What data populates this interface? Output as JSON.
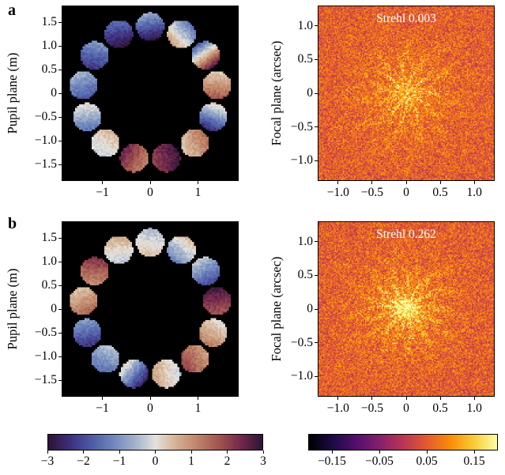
{
  "panels": [
    {
      "label": "a",
      "pupil": {
        "ylabel": "Pupil plane (m)"
      },
      "focal": {
        "ylabel": "Focal plane (arcsec)",
        "annotation": "Strehl 0.003"
      }
    },
    {
      "label": "b",
      "pupil": {
        "ylabel": "Pupil plane (m)"
      },
      "focal": {
        "ylabel": "Focal plane (arcsec)",
        "annotation": "Strehl 0.262"
      }
    }
  ],
  "chart_data": [
    {
      "id": "pupil-a",
      "type": "heatmap",
      "panel": "a",
      "title": "Segmented pupil wavefront phase, panel a",
      "xlabel": "",
      "ylabel": "Pupil plane (m)",
      "xlim": [
        -1.85,
        1.85
      ],
      "ylim": [
        -1.85,
        1.85
      ],
      "xtick_vals": [
        -1,
        0,
        1
      ],
      "xtick_labels": [
        "−1",
        "0",
        "1"
      ],
      "ytick_vals": [
        1.5,
        1.0,
        0.5,
        0,
        -0.5,
        -1.0,
        -1.5
      ],
      "ytick_labels": [
        "1.5",
        "1.0",
        "0.5",
        "0",
        "−0.5",
        "−1.0",
        "−1.5"
      ],
      "colormap": "twilight_shifted",
      "value_range": [
        -3,
        3
      ],
      "background": "black",
      "ring_radius_m": 1.42,
      "segment_radius_m": 0.3,
      "segments": [
        {
          "angle_deg": 90,
          "v1": -3.0,
          "v2": -0.6,
          "grad_deg": 100
        },
        {
          "angle_deg": 62.3,
          "v1": 0.9,
          "v2": -1.6,
          "grad_deg": 40
        },
        {
          "angle_deg": 34.6,
          "v1": 2.8,
          "v2": -1.9,
          "grad_deg": 125
        },
        {
          "angle_deg": 6.9,
          "v1": 1.8,
          "v2": 0.2,
          "grad_deg": 90
        },
        {
          "angle_deg": -20.8,
          "v1": -2.6,
          "v2": 0.4,
          "grad_deg": 70
        },
        {
          "angle_deg": -48.5,
          "v1": 0.3,
          "v2": 1.5,
          "grad_deg": 25
        },
        {
          "angle_deg": -76.2,
          "v1": 2.1,
          "v2": 2.9,
          "grad_deg": 10
        },
        {
          "angle_deg": -103.8,
          "v1": 1.1,
          "v2": 2.6,
          "grad_deg": 150
        },
        {
          "angle_deg": -131.5,
          "v1": -0.3,
          "v2": 0.6,
          "grad_deg": 60
        },
        {
          "angle_deg": -159.2,
          "v1": -1.5,
          "v2": 0.2,
          "grad_deg": 95
        },
        {
          "angle_deg": 173.1,
          "v1": -1.9,
          "v2": -0.5,
          "grad_deg": 110
        },
        {
          "angle_deg": 145.4,
          "v1": -2.4,
          "v2": -0.9,
          "grad_deg": 80
        },
        {
          "angle_deg": 117.7,
          "v1": -3.0,
          "v2": -1.5,
          "grad_deg": 100
        }
      ]
    },
    {
      "id": "focal-a",
      "type": "heatmap",
      "panel": "a",
      "title": "Focal plane PSF, panel a",
      "xlabel": "",
      "ylabel": "Focal plane (arcsec)",
      "annotation": "Strehl 0.003",
      "strehl": 0.003,
      "xlim": [
        -1.3,
        1.3
      ],
      "ylim": [
        -1.3,
        1.3
      ],
      "xtick_vals": [
        -1,
        -0.5,
        0,
        0.5,
        1
      ],
      "xtick_labels": [
        "−1.0",
        "−0.5",
        "0",
        "0.5",
        "1.0"
      ],
      "ytick_vals": [
        1.0,
        0.5,
        0,
        -0.5,
        -1.0
      ],
      "ytick_labels": [
        "1.0",
        "0.5",
        "0",
        "−0.5",
        "−1.0"
      ],
      "colormap": "inferno",
      "value_range": [
        -0.2,
        0.2
      ],
      "psf": {
        "seed": 11,
        "halo_amp": 0.1,
        "halo_sigma": 0.55,
        "core_amp": 0.035,
        "streak_count": 11
      }
    },
    {
      "id": "pupil-b",
      "type": "heatmap",
      "panel": "b",
      "title": "Segmented pupil wavefront phase, panel b",
      "xlabel": "",
      "ylabel": "Pupil plane (m)",
      "xlim": [
        -1.85,
        1.85
      ],
      "ylim": [
        -1.85,
        1.85
      ],
      "xtick_vals": [
        -1,
        0,
        1
      ],
      "xtick_labels": [
        "−1",
        "0",
        "1"
      ],
      "ytick_vals": [
        1.5,
        1.0,
        0.5,
        0,
        -0.5,
        -1.0,
        -1.5
      ],
      "ytick_labels": [
        "1.5",
        "1.0",
        "0.5",
        "0",
        "−0.5",
        "−1.0",
        "−1.5"
      ],
      "colormap": "twilight_shifted",
      "value_range": [
        -3,
        3
      ],
      "background": "black",
      "ring_radius_m": 1.42,
      "segment_radius_m": 0.3,
      "segments": [
        {
          "angle_deg": 90,
          "v1": 0.4,
          "v2": -0.5,
          "grad_deg": 80
        },
        {
          "angle_deg": 62.3,
          "v1": -1.3,
          "v2": 0.5,
          "grad_deg": 50
        },
        {
          "angle_deg": 34.6,
          "v1": -2.1,
          "v2": -0.2,
          "grad_deg": 120
        },
        {
          "angle_deg": 6.9,
          "v1": 1.7,
          "v2": 2.9,
          "grad_deg": 95
        },
        {
          "angle_deg": -20.8,
          "v1": 1.3,
          "v2": 0.0,
          "grad_deg": 60
        },
        {
          "angle_deg": -48.5,
          "v1": 2.0,
          "v2": 0.8,
          "grad_deg": 30
        },
        {
          "angle_deg": -76.2,
          "v1": 0.9,
          "v2": -0.3,
          "grad_deg": 10
        },
        {
          "angle_deg": -103.8,
          "v1": -2.8,
          "v2": 0.3,
          "grad_deg": 140
        },
        {
          "angle_deg": -131.5,
          "v1": -1.6,
          "v2": -0.3,
          "grad_deg": 70
        },
        {
          "angle_deg": -159.2,
          "v1": -2.4,
          "v2": -0.8,
          "grad_deg": 100
        },
        {
          "angle_deg": 173.1,
          "v1": 1.6,
          "v2": 0.3,
          "grad_deg": 115
        },
        {
          "angle_deg": 145.4,
          "v1": 1.0,
          "v2": 2.3,
          "grad_deg": 85
        },
        {
          "angle_deg": 117.7,
          "v1": -0.4,
          "v2": 0.7,
          "grad_deg": 95
        }
      ]
    },
    {
      "id": "focal-b",
      "type": "heatmap",
      "panel": "b",
      "title": "Focal plane PSF, panel b",
      "xlabel": "",
      "ylabel": "Focal plane (arcsec)",
      "annotation": "Strehl 0.262",
      "strehl": 0.262,
      "xlim": [
        -1.3,
        1.3
      ],
      "ylim": [
        -1.3,
        1.3
      ],
      "xtick_vals": [
        -1,
        -0.5,
        0,
        0.5,
        1
      ],
      "xtick_labels": [
        "−1.0",
        "−0.5",
        "0",
        "0.5",
        "1.0"
      ],
      "ytick_vals": [
        1.0,
        0.5,
        0,
        -0.5,
        -1.0
      ],
      "ytick_labels": [
        "1.0",
        "0.5",
        "0",
        "−0.5",
        "−1.0"
      ],
      "colormap": "inferno",
      "value_range": [
        -0.2,
        0.2
      ],
      "psf": {
        "seed": 23,
        "halo_amp": 0.13,
        "halo_sigma": 0.5,
        "core_amp": 0.09,
        "streak_count": 13
      }
    }
  ],
  "colorbars": [
    {
      "id": "cbar-pupil",
      "colormap": "twilight_shifted",
      "range": [
        -3,
        3
      ],
      "tick_vals": [
        -3,
        -2,
        -1,
        0,
        1,
        2,
        3
      ],
      "tick_labels": [
        "−3",
        "−2",
        "−1",
        "0",
        "1",
        "2",
        "3"
      ]
    },
    {
      "id": "cbar-focal",
      "colormap": "inferno",
      "range": [
        -0.2,
        0.2
      ],
      "tick_vals": [
        -0.15,
        -0.05,
        0.05,
        0.15
      ],
      "tick_labels": [
        "−0.15",
        "−0.05",
        "0.05",
        "0.15"
      ]
    }
  ],
  "colors": {
    "background": "#ffffff",
    "plot_background": "#000000",
    "annotation_text": "#ffffff",
    "axis_text": "#000000"
  }
}
